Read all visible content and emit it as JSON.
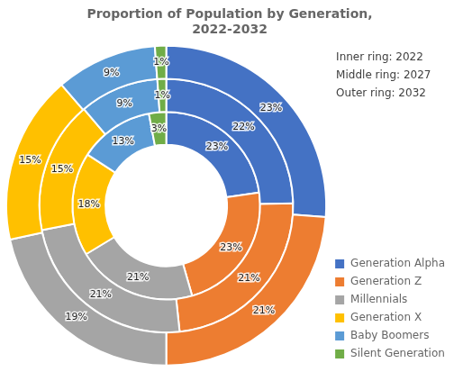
{
  "chart_data": {
    "type": "doughnut",
    "title": "Proportion of Population by Generation,\n2022-2032",
    "categories": [
      "Generation Alpha",
      "Generation Z",
      "Millennials",
      "Generation X",
      "Baby Boomers",
      "Silent Generation"
    ],
    "colors": [
      "#4472C4",
      "#ED7D31",
      "#A5A5A5",
      "#FFC000",
      "#5B9BD5",
      "#70AD47"
    ],
    "series": [
      {
        "name": "Inner ring: 2022",
        "values": [
          23,
          23,
          21,
          18,
          13,
          3
        ],
        "value_labels": [
          "23%",
          "23%",
          "21%",
          "18%",
          "13%",
          "3%"
        ]
      },
      {
        "name": "Middle ring: 2027",
        "values": [
          22,
          21,
          21,
          15,
          9,
          1
        ],
        "value_labels": [
          "22%",
          "21%",
          "21%",
          "15%",
          "9%",
          "1%"
        ]
      },
      {
        "name": "Outer ring: 2032",
        "values": [
          23,
          21,
          19,
          15,
          9,
          1
        ],
        "value_labels": [
          "23%",
          "21%",
          "19%",
          "15%",
          "9%",
          "1%"
        ]
      }
    ],
    "data_labels": true,
    "legend": "right"
  }
}
